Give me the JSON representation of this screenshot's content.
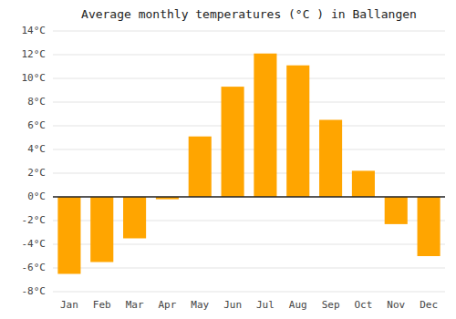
{
  "chart_data": {
    "type": "bar",
    "title": "Average monthly temperatures (°C ) in Ballangen",
    "categories": [
      "Jan",
      "Feb",
      "Mar",
      "Apr",
      "May",
      "Jun",
      "Jul",
      "Aug",
      "Sep",
      "Oct",
      "Nov",
      "Dec"
    ],
    "values": [
      -6.5,
      -5.5,
      -3.5,
      -0.2,
      5.1,
      9.3,
      12.1,
      11.1,
      6.5,
      2.2,
      -2.3,
      -5.0
    ],
    "color": "#FFA500",
    "ylim": [
      -8,
      14
    ],
    "yticks": [
      {
        "value": -8,
        "label": "-8°C"
      },
      {
        "value": -6,
        "label": "-6°C"
      },
      {
        "value": -4,
        "label": "-4°C"
      },
      {
        "value": -2,
        "label": "-2°C"
      },
      {
        "value": 0,
        "label": "0°C"
      },
      {
        "value": 2,
        "label": "2°C"
      },
      {
        "value": 4,
        "label": "4°C"
      },
      {
        "value": 6,
        "label": "6°C"
      },
      {
        "value": 8,
        "label": "8°C"
      },
      {
        "value": 10,
        "label": "10°C"
      },
      {
        "value": 12,
        "label": "12°C"
      },
      {
        "value": 14,
        "label": "14°C"
      }
    ],
    "grid": true
  }
}
